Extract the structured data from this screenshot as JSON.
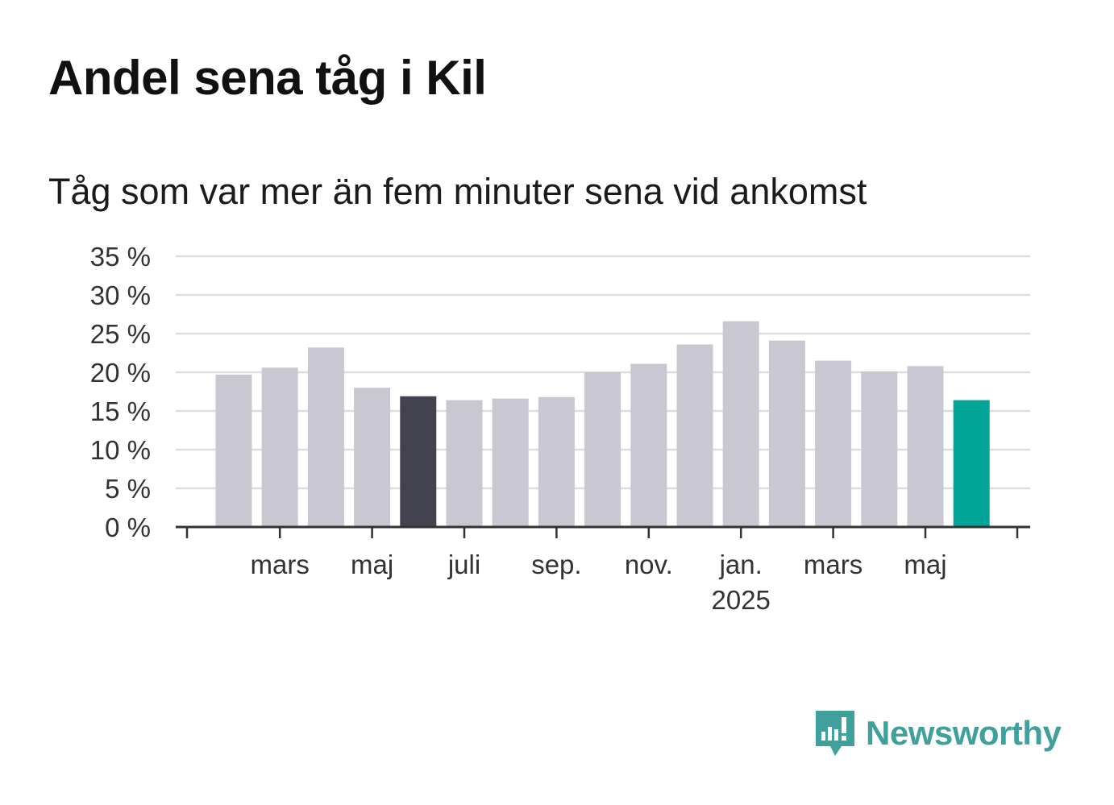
{
  "title": "Andel sena tåg i Kil",
  "subtitle": "Tåg som var mer än fem minuter sena vid ankomst",
  "brand": {
    "name": "Newsworthy",
    "icon": "newsworthy-chart-bubble-icon",
    "color": "#40a09b"
  },
  "colors": {
    "default_bar": "#c8c7d2",
    "highlight_bar": "#43424f",
    "latest_bar": "#00a598",
    "grid": "#dddddd",
    "axis": "#333333"
  },
  "chart_data": {
    "type": "bar",
    "title": "Andel sena tåg i Kil",
    "subtitle": "Tåg som var mer än fem minuter sena vid ankomst",
    "xlabel": "",
    "ylabel": "",
    "ylim": [
      0,
      35
    ],
    "yticks": [
      0,
      5,
      10,
      15,
      20,
      25,
      30,
      35
    ],
    "ytick_labels": [
      "0 %",
      "5 %",
      "10 %",
      "15 %",
      "20 %",
      "25 %",
      "30 %",
      "35 %"
    ],
    "grid": true,
    "categories": [
      "2024-02",
      "2024-03",
      "2024-04",
      "2024-05",
      "2024-06",
      "2024-07",
      "2024-08",
      "2024-09",
      "2024-10",
      "2024-11",
      "2024-12",
      "2025-01",
      "2025-02",
      "2025-03",
      "2025-04",
      "2025-05",
      "2025-06"
    ],
    "values": [
      19.7,
      20.6,
      23.2,
      18.0,
      16.9,
      16.4,
      16.6,
      16.8,
      20.0,
      21.1,
      23.6,
      26.6,
      24.1,
      21.5,
      20.1,
      20.8,
      16.4
    ],
    "highlight_index": 4,
    "latest_index": 16,
    "xtick_labels": [
      {
        "label": "mars",
        "category": "2024-03"
      },
      {
        "label": "maj",
        "category": "2024-05"
      },
      {
        "label": "juli",
        "category": "2024-07"
      },
      {
        "label": "sep.",
        "category": "2024-09"
      },
      {
        "label": "nov.",
        "category": "2024-11"
      },
      {
        "label": "jan.",
        "sublabel": "2025",
        "category": "2025-01"
      },
      {
        "label": "mars",
        "category": "2025-03"
      },
      {
        "label": "maj",
        "category": "2025-05"
      }
    ]
  }
}
